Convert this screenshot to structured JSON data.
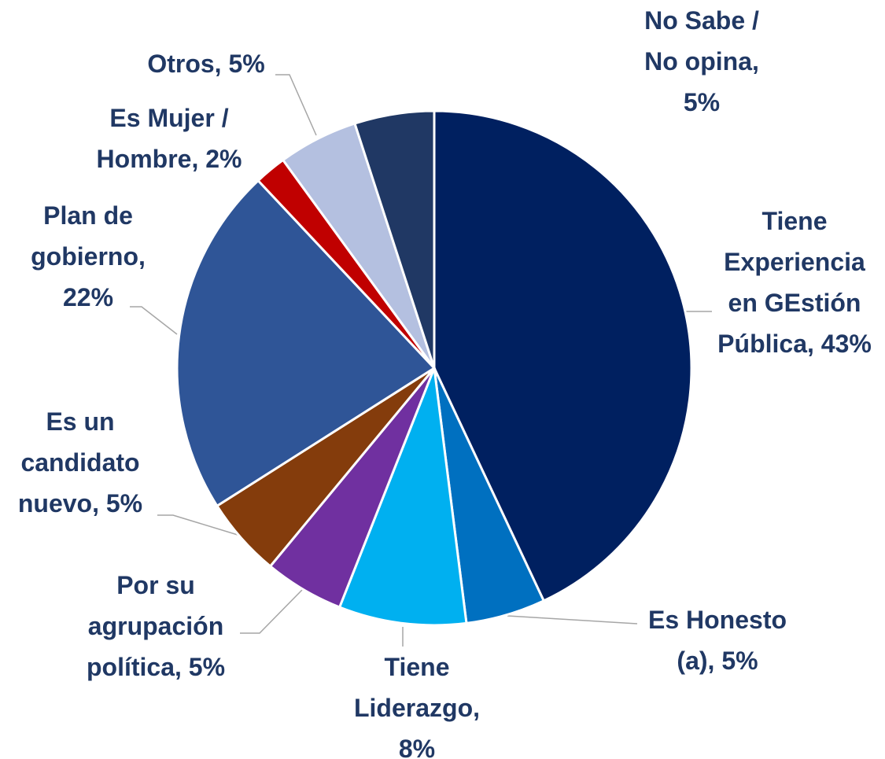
{
  "chart_data": {
    "type": "pie",
    "categories": [
      "Tiene Experiencia en GEstión Pública,",
      "Es Honesto (a),",
      "Tiene Liderazgo,",
      "Por su agrupación política,",
      "Es un candidato nuevo,",
      "Plan de gobierno,",
      "Es Mujer / Hombre,",
      "Otros,",
      "No Sabe / No opina,"
    ],
    "values": [
      43,
      5,
      8,
      5,
      5,
      22,
      2,
      5,
      5
    ],
    "value_labels": [
      "43%",
      "5%",
      "8%",
      "5%",
      "5%",
      "22%",
      "2%",
      "5%",
      "5%"
    ],
    "colors": [
      "#002060",
      "#0070c0",
      "#00b0f0",
      "#7030a0",
      "#843c0c",
      "#2f5597",
      "#c00000",
      "#b4c0e0",
      "#203864"
    ]
  }
}
